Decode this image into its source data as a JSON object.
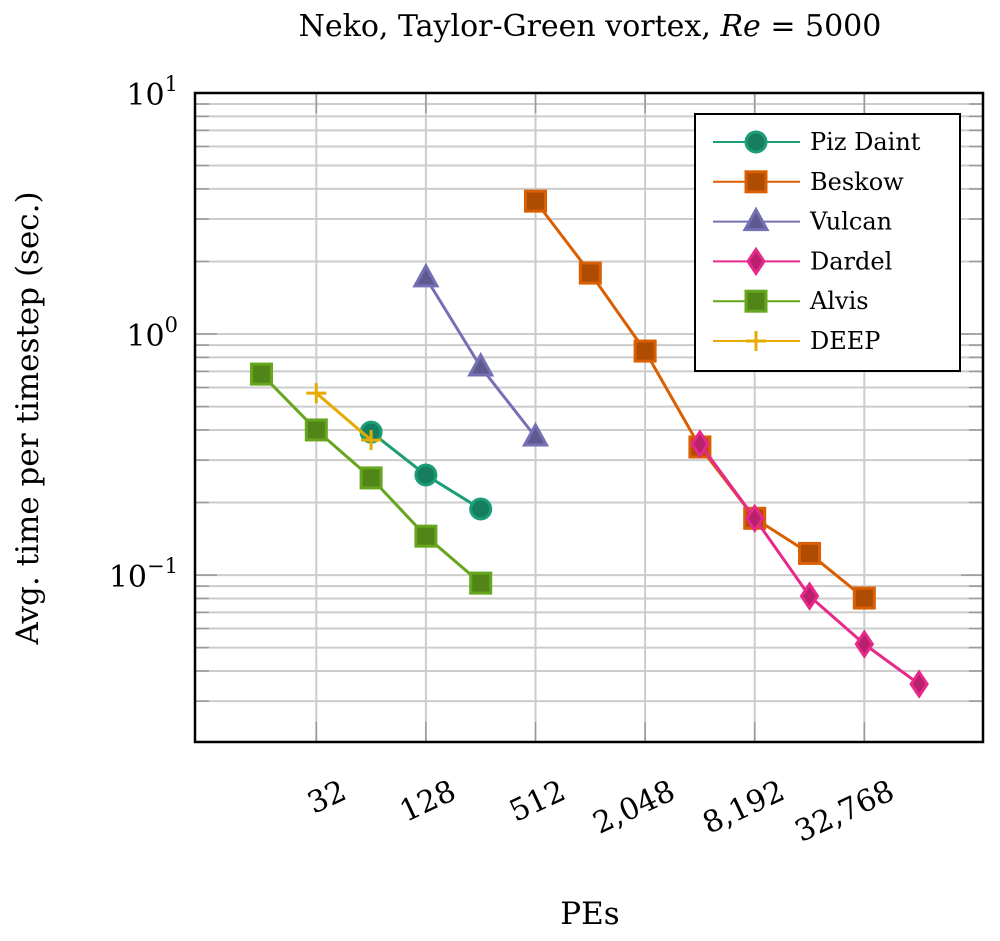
{
  "chart_data": {
    "type": "line",
    "title_prefix": "Neko, Taylor-Green vortex, ",
    "title_math_var": "Re",
    "title_math_rest": " = 5000",
    "xlabel": "PEs",
    "ylabel": "Avg. time per timestep (sec.)",
    "xscale": "log2",
    "yscale": "log10",
    "xlim": [
      6.9,
      147000
    ],
    "ylim": [
      0.0203,
      10
    ],
    "x_ticks": [
      32,
      128,
      512,
      2048,
      8192,
      32768
    ],
    "x_tick_labels": [
      "32",
      "128",
      "512",
      "2,048",
      "8,192",
      "32,768"
    ],
    "y_ticks": [
      {
        "value": 10,
        "base": "10",
        "exp": "1"
      },
      {
        "value": 1,
        "base": "10",
        "exp": "0"
      },
      {
        "value": 0.1,
        "base": "10",
        "exp": "−1"
      }
    ],
    "grid": true,
    "legend_position": "top-right",
    "series": [
      {
        "name": "Piz Daint",
        "marker": "circle",
        "color": "#1b9e77",
        "marker_fill": "#167e5f",
        "x": [
          64,
          128,
          256
        ],
        "y": [
          0.392,
          0.26,
          0.188
        ]
      },
      {
        "name": "Beskow",
        "marker": "square",
        "color": "#d95f02",
        "marker_fill": "#ae4c02",
        "x": [
          512,
          1024,
          2048,
          4096,
          8192,
          16384,
          32768
        ],
        "y": [
          3.56,
          1.79,
          0.85,
          0.34,
          0.172,
          0.123,
          0.0803
        ]
      },
      {
        "name": "Vulcan",
        "marker": "triangle",
        "color": "#7570b3",
        "marker_fill": "#5e5a8f",
        "x": [
          128,
          256,
          512
        ],
        "y": [
          1.71,
          0.73,
          0.374
        ]
      },
      {
        "name": "Dardel",
        "marker": "diamond",
        "color": "#e7298a",
        "marker_fill": "#b9216e",
        "x": [
          4096,
          8192,
          16384,
          32768,
          65536
        ],
        "y": [
          0.35,
          0.172,
          0.0818,
          0.0517,
          0.0353
        ]
      },
      {
        "name": "Alvis",
        "marker": "square",
        "color": "#66a61e",
        "marker_fill": "#528518",
        "x": [
          16,
          32,
          64,
          128,
          256
        ],
        "y": [
          0.682,
          0.4,
          0.253,
          0.145,
          0.0926
        ]
      },
      {
        "name": "DEEP",
        "marker": "plus",
        "color": "#e6ab02",
        "marker_fill": "#e6ab02",
        "x": [
          32,
          64
        ],
        "y": [
          0.569,
          0.363
        ]
      }
    ]
  }
}
